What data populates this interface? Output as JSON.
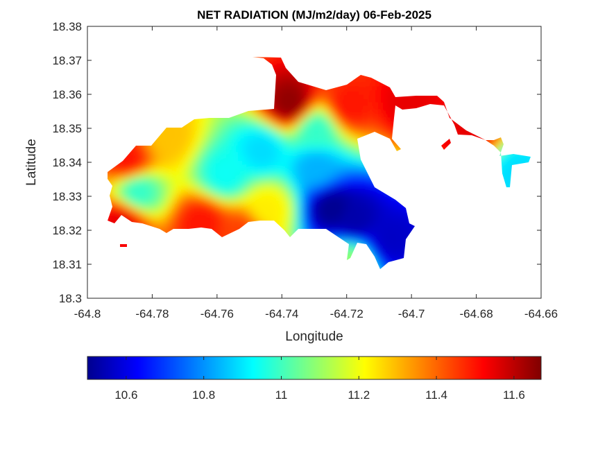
{
  "chart_data": {
    "type": "heatmap",
    "title": "NET RADIATION (MJ/m2/day) 06-Feb-2025",
    "xlabel": "Longitude",
    "ylabel": "Latitude",
    "xlim": [
      -64.8,
      -64.66
    ],
    "ylim": [
      18.3,
      18.38
    ],
    "x_ticks": [
      -64.8,
      -64.78,
      -64.76,
      -64.74,
      -64.72,
      -64.7,
      -64.68,
      -64.66
    ],
    "x_tick_labels": [
      "-64.8",
      "-64.78",
      "-64.76",
      "-64.74",
      "-64.72",
      "-64.7",
      "-64.68",
      "-64.66"
    ],
    "y_ticks": [
      18.3,
      18.31,
      18.32,
      18.33,
      18.34,
      18.35,
      18.36,
      18.37,
      18.38
    ],
    "y_tick_labels": [
      "18.3",
      "18.31",
      "18.32",
      "18.33",
      "18.34",
      "18.35",
      "18.36",
      "18.37",
      "18.38"
    ],
    "grid": false,
    "colormap": "jet",
    "colorbar": {
      "orientation": "horizontal",
      "placement": "bottom",
      "range": [
        10.5,
        11.67
      ],
      "ticks": [
        10.6,
        10.8,
        11,
        11.2,
        11.4,
        11.6
      ],
      "tick_labels": [
        "10.6",
        "10.8",
        "11",
        "11.2",
        "11.4",
        "11.6"
      ]
    },
    "field_features": [
      {
        "lon": -64.738,
        "lat": 18.358,
        "value": 11.65
      },
      {
        "lon": -64.725,
        "lat": 18.327,
        "value": 10.52
      },
      {
        "lon": -64.718,
        "lat": 18.324,
        "value": 10.55
      },
      {
        "lon": -64.707,
        "lat": 18.318,
        "value": 10.58
      },
      {
        "lon": -64.73,
        "lat": 18.339,
        "value": 10.85
      },
      {
        "lon": -64.758,
        "lat": 18.337,
        "value": 10.95
      },
      {
        "lon": -64.747,
        "lat": 18.344,
        "value": 10.9
      },
      {
        "lon": -64.73,
        "lat": 18.35,
        "value": 11.0
      },
      {
        "lon": -64.785,
        "lat": 18.332,
        "value": 11.0
      },
      {
        "lon": -64.79,
        "lat": 18.323,
        "value": 11.55
      },
      {
        "lon": -64.788,
        "lat": 18.341,
        "value": 11.5
      },
      {
        "lon": -64.765,
        "lat": 18.323,
        "value": 11.5
      },
      {
        "lon": -64.753,
        "lat": 18.32,
        "value": 11.45
      },
      {
        "lon": -64.72,
        "lat": 18.357,
        "value": 11.5
      },
      {
        "lon": -64.702,
        "lat": 18.358,
        "value": 11.55
      },
      {
        "lon": -64.683,
        "lat": 18.35,
        "value": 11.55
      },
      {
        "lon": -64.668,
        "lat": 18.337,
        "value": 10.9
      },
      {
        "lon": -64.72,
        "lat": 18.311,
        "value": 11.1
      },
      {
        "lon": -64.776,
        "lat": 18.348,
        "value": 11.3
      },
      {
        "lon": -64.745,
        "lat": 18.327,
        "value": 11.25
      }
    ]
  },
  "colors": {
    "background": "#ffffff",
    "axes": "#262626"
  }
}
